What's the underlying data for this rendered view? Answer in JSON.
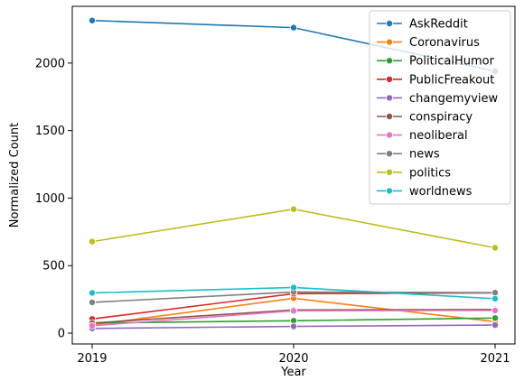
{
  "chart_data": {
    "type": "line",
    "title": "",
    "xlabel": "Year",
    "ylabel": "Normalized Count",
    "x": [
      "2019",
      "2020",
      "2021"
    ],
    "yticks": [
      0,
      500,
      1000,
      1500,
      2000
    ],
    "ylim": [
      -80,
      2420
    ],
    "grid": false,
    "legend_position": "top-right",
    "series": [
      {
        "name": "AskReddit",
        "color": "#1f77b4",
        "values": [
          2315,
          2262,
          1940
        ]
      },
      {
        "name": "Coronavirus",
        "color": "#ff7f0e",
        "values": [
          60,
          258,
          85
        ]
      },
      {
        "name": "PoliticalHumor",
        "color": "#2ca02c",
        "values": [
          75,
          92,
          112
        ]
      },
      {
        "name": "PublicFreakout",
        "color": "#d62728",
        "values": [
          105,
          292,
          298
        ]
      },
      {
        "name": "changemyview",
        "color": "#9467bd",
        "values": [
          35,
          50,
          60
        ]
      },
      {
        "name": "conspiracy",
        "color": "#8c564b",
        "values": [
          75,
          172,
          175
        ]
      },
      {
        "name": "neoliberal",
        "color": "#e377c2",
        "values": [
          55,
          165,
          168
        ]
      },
      {
        "name": "news",
        "color": "#7f7f7f",
        "values": [
          228,
          305,
          300
        ]
      },
      {
        "name": "politics",
        "color": "#bcbd22",
        "values": [
          678,
          918,
          632
        ]
      },
      {
        "name": "worldnews",
        "color": "#17becf",
        "values": [
          298,
          338,
          255
        ]
      }
    ]
  }
}
